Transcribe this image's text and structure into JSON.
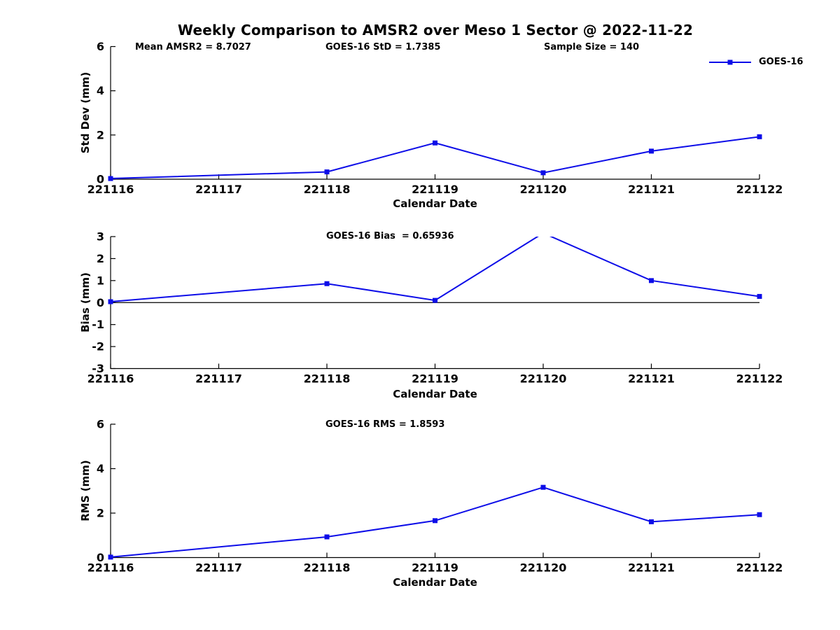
{
  "title": "Weekly Comparison to AMSR2 over Meso 1 Sector @ 2022-11-22",
  "legend": {
    "label": "GOES-16"
  },
  "colors": {
    "series": "#0d0de8",
    "axis": "#000000",
    "text": "#000000"
  },
  "chart_data": [
    {
      "type": "line",
      "panel": "std-dev",
      "ylabel": "Std Dev (mm)",
      "xlabel": "Calendar Date",
      "ylim": [
        0,
        6
      ],
      "yticks": [
        6,
        4,
        2,
        0
      ],
      "categories": [
        "221116",
        "221117",
        "221118",
        "221119",
        "221120",
        "221121",
        "221122"
      ],
      "series": [
        {
          "name": "GOES-16",
          "marker": "square",
          "values": [
            0.03,
            null,
            0.33,
            1.64,
            0.29,
            1.27,
            1.92
          ]
        }
      ],
      "annotations": [
        "Mean AMSR2 = 8.7027",
        "GOES-16 StD = 1.7385",
        "Sample Size = 140"
      ],
      "zero_line": false,
      "legend_position": "upper-right-outside"
    },
    {
      "type": "line",
      "panel": "bias",
      "ylabel": "Bias (mm)",
      "xlabel": "Calendar Date",
      "ylim": [
        -3,
        3
      ],
      "yticks": [
        3,
        2,
        1,
        0,
        -1,
        -2,
        -3
      ],
      "categories": [
        "221116",
        "221117",
        "221118",
        "221119",
        "221120",
        "221121",
        "221122"
      ],
      "series": [
        {
          "name": "GOES-16",
          "marker": "square",
          "values": [
            0.04,
            null,
            0.86,
            0.1,
            3.16,
            1.0,
            0.28
          ]
        }
      ],
      "annotations": [
        "GOES-16 Bias  = 0.65936"
      ],
      "zero_line": true,
      "legend_position": "none"
    },
    {
      "type": "line",
      "panel": "rms",
      "ylabel": "RMS (mm)",
      "xlabel": "Calendar Date",
      "ylim": [
        0,
        6
      ],
      "yticks": [
        6,
        4,
        2,
        0
      ],
      "categories": [
        "221116",
        "221117",
        "221118",
        "221119",
        "221120",
        "221121",
        "221122"
      ],
      "series": [
        {
          "name": "GOES-16",
          "marker": "square",
          "values": [
            0.02,
            null,
            0.93,
            1.66,
            3.16,
            1.61,
            1.93
          ]
        }
      ],
      "annotations": [
        "GOES-16 RMS = 1.8593"
      ],
      "zero_line": false,
      "legend_position": "none"
    }
  ]
}
